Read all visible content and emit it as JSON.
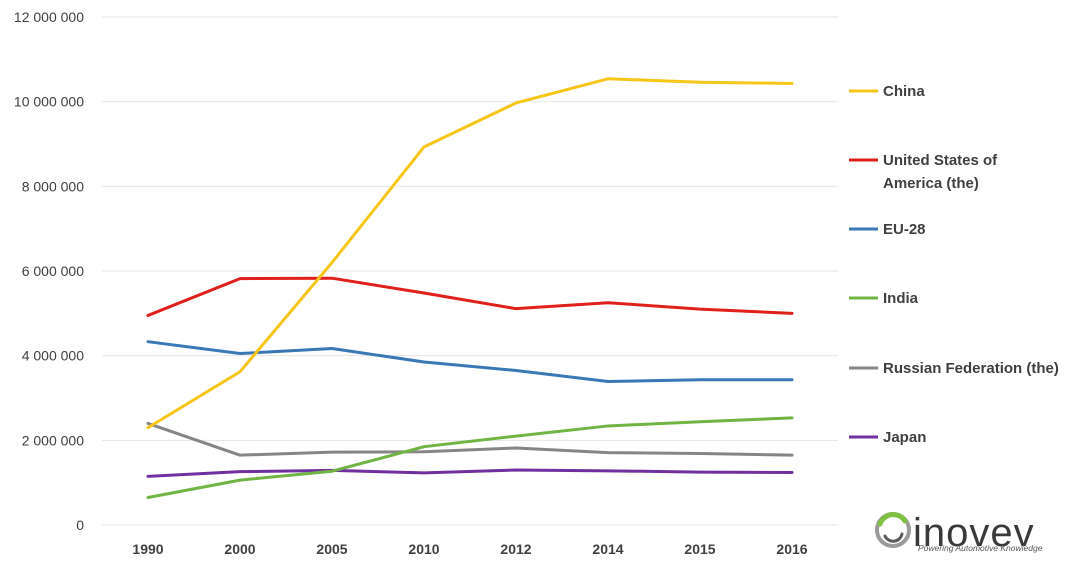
{
  "chart_data": {
    "type": "line",
    "title": "",
    "xlabel": "",
    "ylabel": "",
    "categories": [
      "1990",
      "2000",
      "2005",
      "2010",
      "2012",
      "2014",
      "2015",
      "2016"
    ],
    "ylim": [
      0,
      12000000
    ],
    "yticks": [
      0,
      2000000,
      4000000,
      6000000,
      8000000,
      10000000,
      12000000
    ],
    "ytick_labels": [
      "0",
      "2 000 000",
      "4 000 000",
      "6 000 000",
      "8 000 000",
      "10 000 000",
      "12 000 000"
    ],
    "grid": true,
    "legend_position": "right",
    "series": [
      {
        "name": "China",
        "color": "#f5c518",
        "values": [
          2300000,
          3620000,
          6200000,
          8930000,
          9970000,
          10540000,
          10460000,
          10430000
        ]
      },
      {
        "name": "United States of America (the)",
        "legend_lines": [
          "United States of",
          "America (the)"
        ],
        "color": "#e0201b",
        "values": [
          4950000,
          5820000,
          5830000,
          5480000,
          5110000,
          5250000,
          5100000,
          5000000
        ]
      },
      {
        "name": "EU-28",
        "color": "#3a77b5",
        "values": [
          4330000,
          4050000,
          4170000,
          3850000,
          3650000,
          3390000,
          3430000,
          3430000
        ]
      },
      {
        "name": "India",
        "color": "#70b544",
        "values": [
          650000,
          1060000,
          1270000,
          1850000,
          2100000,
          2340000,
          2440000,
          2530000
        ]
      },
      {
        "name": "Russian Federation (the)",
        "color": "#868686",
        "values": [
          2400000,
          1650000,
          1720000,
          1730000,
          1820000,
          1710000,
          1690000,
          1650000
        ]
      },
      {
        "name": "Japan",
        "color": "#7030a0",
        "values": [
          1150000,
          1260000,
          1290000,
          1230000,
          1300000,
          1280000,
          1250000,
          1240000
        ]
      }
    ]
  },
  "brand": {
    "name": "inovev",
    "tagline": "Powering Automotive Knowledge",
    "logo_icon": "swirl-icon"
  }
}
